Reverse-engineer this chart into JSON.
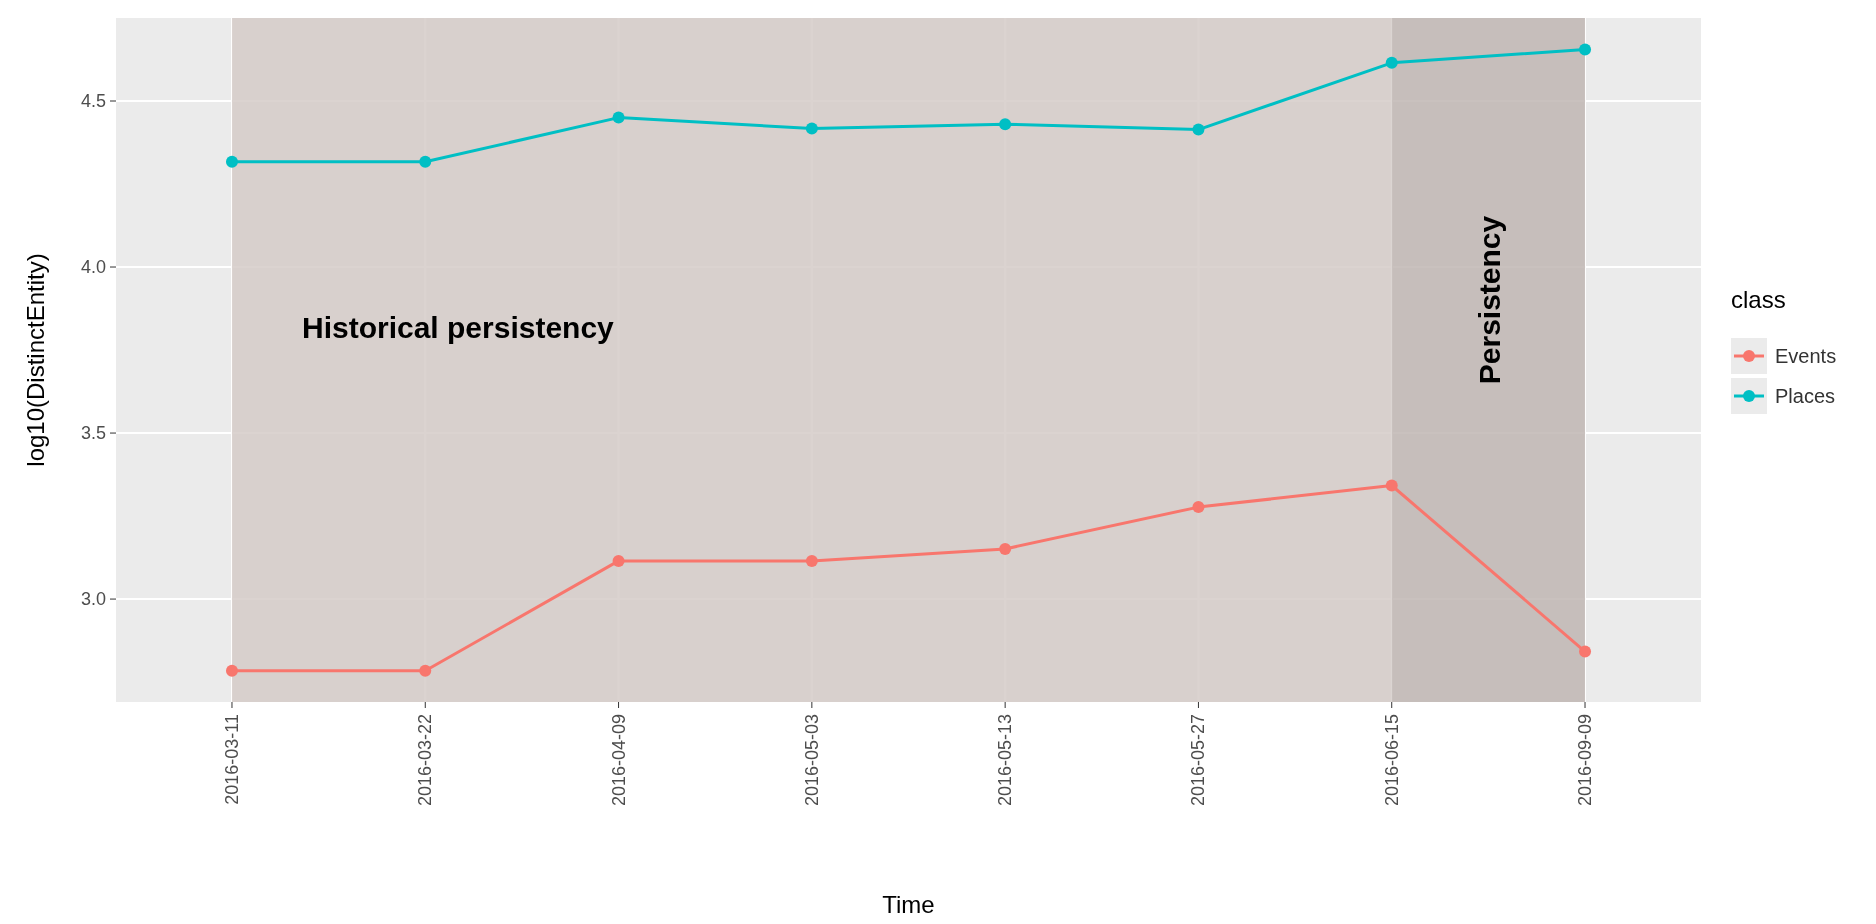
{
  "chart_data": {
    "type": "line",
    "xlabel": "Time",
    "ylabel": "log10(DistinctEntity)",
    "legend_title": "class",
    "categories": [
      "2016-03-11",
      "2016-03-22",
      "2016-04-09",
      "2016-05-03",
      "2016-05-13",
      "2016-05-27",
      "2016-06-15",
      "2016-09-09"
    ],
    "series": [
      {
        "name": "Events",
        "color": "#f8766d",
        "values": [
          2.784,
          2.784,
          3.115,
          3.115,
          3.151,
          3.277,
          3.342,
          2.842
        ]
      },
      {
        "name": "Places",
        "color": "#00bfc4",
        "values": [
          4.317,
          4.317,
          4.45,
          4.417,
          4.43,
          4.414,
          4.615,
          4.655
        ]
      }
    ],
    "ylim": [
      2.69,
      4.75
    ],
    "yticks": [
      {
        "value": 3,
        "label": "3.0"
      },
      3.5,
      {
        "value": 4,
        "label": "4.0"
      },
      4.5
    ],
    "bands": [
      {
        "axis": "x",
        "from": "2016-03-11",
        "to": "2016-06-15",
        "label": "Historical persistency",
        "color": "#d5cbc8"
      },
      {
        "axis": "x",
        "from": "2016-06-15",
        "to": "2016-09-09",
        "label": "Persistency",
        "color": "#c0b6b3"
      }
    ],
    "grid": true,
    "legend": "right",
    "marker": "circle",
    "line_style": "solid"
  }
}
